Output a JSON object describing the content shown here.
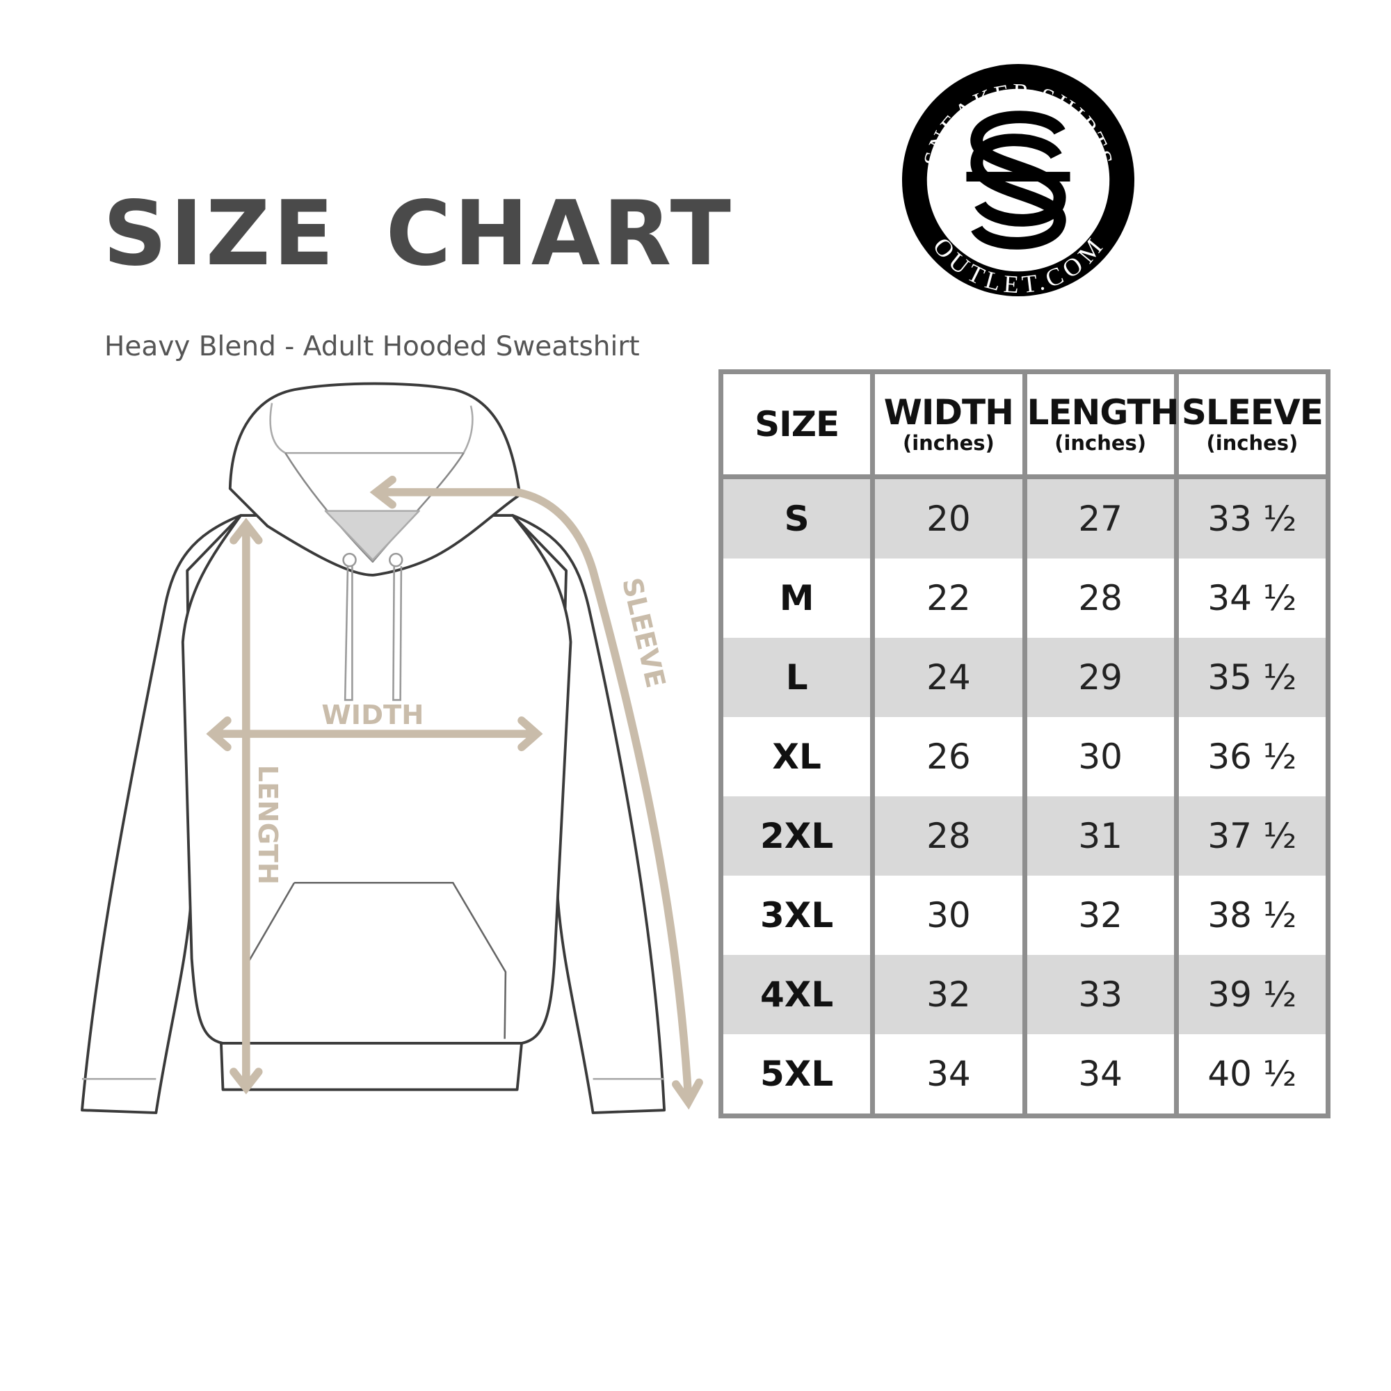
{
  "header": {
    "title": "SIZE CHART",
    "subtitle": "Heavy Blend - Adult Hooded Sweatshirt"
  },
  "logo": {
    "top_text": "SNEAKER SHIRTS",
    "bottom_text": "OUTLET.COM",
    "monogram": "SS"
  },
  "diagram": {
    "labels": {
      "width": "WIDTH",
      "length": "LENGTH",
      "sleeve": "SLEEVE"
    },
    "arrow_color": "#c9bcaa",
    "outline_color": "#3a3a3a"
  },
  "table": {
    "columns": [
      {
        "label": "SIZE",
        "unit": ""
      },
      {
        "label": "WIDTH",
        "unit": "(inches)"
      },
      {
        "label": "LENGTH",
        "unit": "(inches)"
      },
      {
        "label": "SLEEVE",
        "unit": "(inches)"
      }
    ],
    "rows": [
      [
        "S",
        "20",
        "27",
        "33 ½"
      ],
      [
        "M",
        "22",
        "28",
        "34 ½"
      ],
      [
        "L",
        "24",
        "29",
        "35 ½"
      ],
      [
        "XL",
        "26",
        "30",
        "36 ½"
      ],
      [
        "2XL",
        "28",
        "31",
        "37 ½"
      ],
      [
        "3XL",
        "30",
        "32",
        "38 ½"
      ],
      [
        "4XL",
        "32",
        "33",
        "39 ½"
      ],
      [
        "5XL",
        "34",
        "34",
        "40 ½"
      ]
    ],
    "shade_color": "#d9d9d9",
    "border_color": "#8e8e8e"
  }
}
